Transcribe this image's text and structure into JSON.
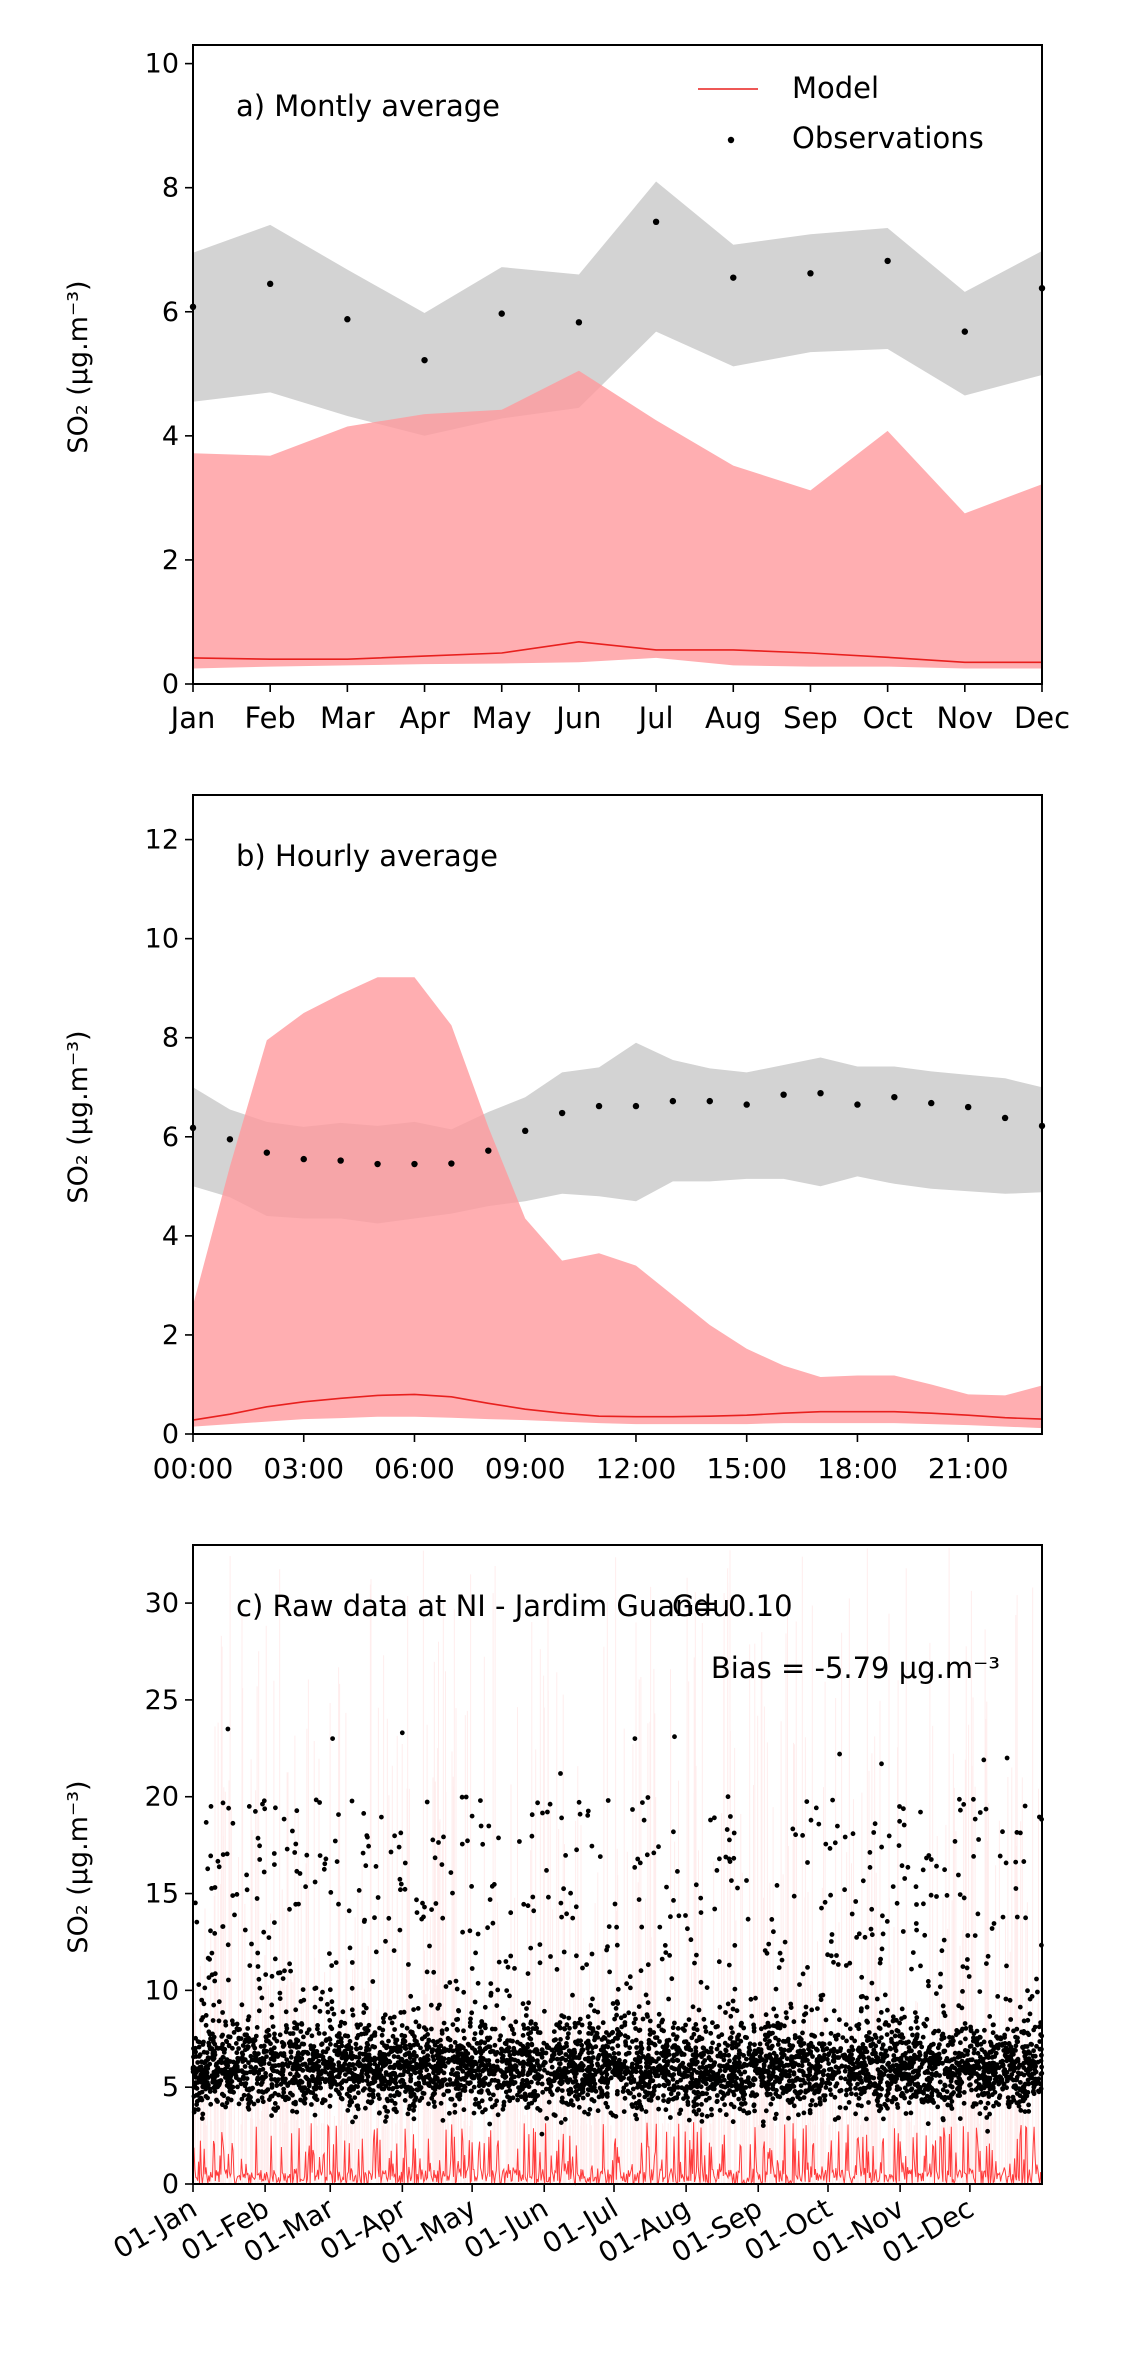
{
  "ylabel": "SO₂ (μg.m⁻³)",
  "chart_data": [
    {
      "type": "line",
      "panel_label": "a) Montly average",
      "categories": [
        "Jan",
        "Feb",
        "Mar",
        "Apr",
        "May",
        "Jun",
        "Jul",
        "Aug",
        "Sep",
        "Oct",
        "Nov",
        "Dec"
      ],
      "ylabel": "SO₂ (μg.m⁻³)",
      "ylim": [
        0,
        10.3
      ],
      "yticks": [
        "0",
        "2",
        "4",
        "6",
        "8",
        "10"
      ],
      "legend": [
        "Model",
        "Observations"
      ],
      "legend_position": "top-right",
      "series": [
        {
          "name": "Model",
          "color": "#e8201e",
          "values": [
            0.42,
            0.4,
            0.4,
            0.45,
            0.5,
            0.68,
            0.55,
            0.55,
            0.5,
            0.43,
            0.35,
            0.35
          ],
          "band_low": [
            0.25,
            0.28,
            0.3,
            0.32,
            0.33,
            0.35,
            0.42,
            0.3,
            0.28,
            0.28,
            0.25,
            0.25
          ],
          "band_high": [
            3.72,
            3.68,
            4.15,
            4.35,
            4.42,
            5.05,
            4.25,
            3.52,
            3.12,
            4.08,
            2.75,
            3.22
          ]
        },
        {
          "name": "Observations",
          "color": "#000000",
          "values": [
            6.08,
            6.45,
            5.88,
            5.22,
            5.97,
            5.83,
            7.45,
            6.55,
            6.62,
            6.82,
            5.68,
            6.38
          ],
          "band_low": [
            4.55,
            4.7,
            4.32,
            4.0,
            4.28,
            4.45,
            5.68,
            5.12,
            5.35,
            5.4,
            4.65,
            4.98
          ],
          "band_high": [
            6.95,
            7.4,
            6.68,
            5.98,
            6.72,
            6.6,
            8.1,
            7.08,
            7.25,
            7.35,
            6.32,
            6.98
          ]
        }
      ]
    },
    {
      "type": "line",
      "panel_label": "b) Hourly average",
      "hours": [
        0,
        1,
        2,
        3,
        4,
        5,
        6,
        7,
        8,
        9,
        10,
        11,
        12,
        13,
        14,
        15,
        16,
        17,
        18,
        19,
        20,
        21,
        22,
        23
      ],
      "xticks": [
        "00:00",
        "03:00",
        "06:00",
        "09:00",
        "12:00",
        "15:00",
        "18:00",
        "21:00"
      ],
      "ylabel": "SO₂ (μg.m⁻³)",
      "ylim": [
        0,
        12.9
      ],
      "yticks": [
        "0",
        "2",
        "4",
        "6",
        "8",
        "10",
        "12"
      ],
      "series": [
        {
          "name": "Model",
          "color": "#e8201e",
          "values": [
            0.28,
            0.4,
            0.55,
            0.65,
            0.72,
            0.78,
            0.8,
            0.75,
            0.62,
            0.5,
            0.42,
            0.36,
            0.35,
            0.35,
            0.36,
            0.38,
            0.42,
            0.45,
            0.45,
            0.45,
            0.42,
            0.38,
            0.33,
            0.3
          ],
          "band_low": [
            0.15,
            0.2,
            0.25,
            0.3,
            0.32,
            0.35,
            0.35,
            0.33,
            0.3,
            0.28,
            0.25,
            0.22,
            0.2,
            0.2,
            0.2,
            0.2,
            0.22,
            0.22,
            0.22,
            0.22,
            0.2,
            0.18,
            0.15,
            0.12
          ],
          "band_high": [
            2.6,
            5.4,
            7.95,
            8.5,
            8.88,
            9.22,
            9.22,
            8.25,
            6.2,
            4.35,
            3.5,
            3.65,
            3.4,
            2.8,
            2.2,
            1.72,
            1.38,
            1.15,
            1.18,
            1.18,
            1.0,
            0.8,
            0.78,
            0.98
          ]
        },
        {
          "name": "Observations",
          "color": "#000000",
          "values": [
            6.18,
            5.95,
            5.68,
            5.55,
            5.52,
            5.45,
            5.45,
            5.46,
            5.72,
            6.12,
            6.48,
            6.62,
            6.62,
            6.72,
            6.72,
            6.65,
            6.85,
            6.88,
            6.65,
            6.8,
            6.68,
            6.6,
            6.38,
            6.22
          ],
          "band_low": [
            5.0,
            4.78,
            4.4,
            4.35,
            4.35,
            4.25,
            4.35,
            4.45,
            4.6,
            4.7,
            4.85,
            4.8,
            4.7,
            5.1,
            5.1,
            5.15,
            5.15,
            5.0,
            5.2,
            5.05,
            4.95,
            4.9,
            4.85,
            4.88
          ],
          "band_high": [
            7.0,
            6.55,
            6.3,
            6.2,
            6.28,
            6.22,
            6.3,
            6.15,
            6.5,
            6.8,
            7.3,
            7.4,
            7.9,
            7.55,
            7.38,
            7.3,
            7.45,
            7.6,
            7.42,
            7.42,
            7.32,
            7.25,
            7.18,
            7.0
          ]
        }
      ]
    },
    {
      "type": "scatter",
      "panel_label": "c) Raw data at NI - Jardim Guandu",
      "annotations": [
        "G= 0.10",
        "Bias = -5.79 μg.m⁻³"
      ],
      "xticks": [
        "01-Jan",
        "01-Feb",
        "01-Mar",
        "01-Apr",
        "01-May",
        "01-Jun",
        "01-Jul",
        "01-Aug",
        "01-Sep",
        "01-Oct",
        "01-Nov",
        "01-Dec"
      ],
      "xtick_days": [
        0,
        31,
        59,
        90,
        120,
        151,
        181,
        212,
        243,
        273,
        304,
        334
      ],
      "x_range_days": [
        0,
        365
      ],
      "ylabel": "SO₂ (μg.m⁻³)",
      "ylim": [
        0,
        33
      ],
      "yticks": [
        "0",
        "5",
        "10",
        "15",
        "20",
        "25",
        "30"
      ],
      "series": [
        {
          "name": "Model",
          "color": "#ff1a1a",
          "typical_range": [
            0,
            3
          ],
          "peak_max": 33
        },
        {
          "name": "Observations",
          "color": "#000000",
          "typical_range": [
            3,
            9
          ],
          "high_points": [
            [
              15,
              23.5
            ],
            [
              60,
              23
            ],
            [
              90,
              23.3
            ],
            [
              158,
              21.2
            ],
            [
              190,
              23
            ],
            [
              207,
              23.1
            ],
            [
              278,
              22.2
            ],
            [
              296,
              21.7
            ],
            [
              340,
              21.9
            ],
            [
              350,
              22
            ],
            [
              120,
              19
            ],
            [
              230,
              20
            ]
          ]
        }
      ]
    }
  ]
}
